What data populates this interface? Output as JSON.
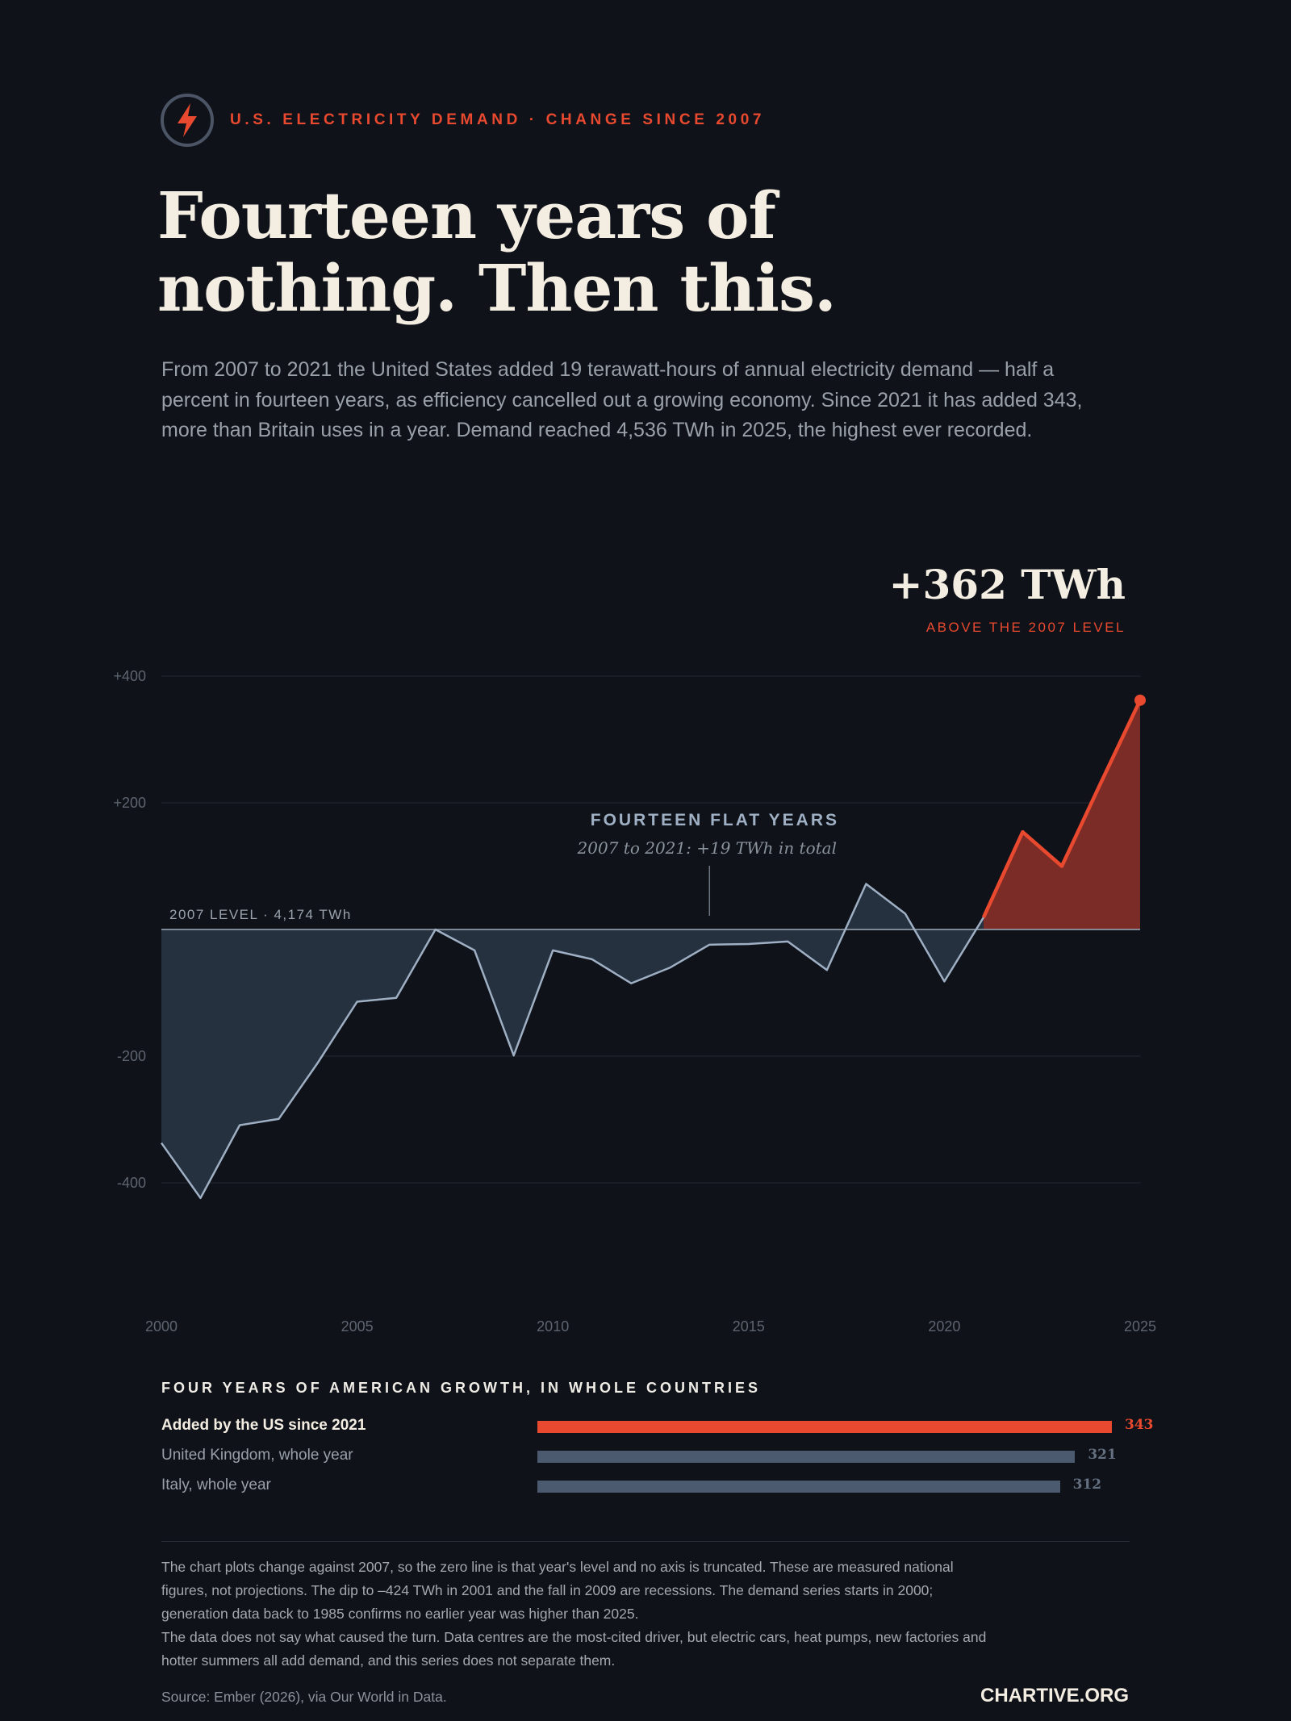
{
  "header": {
    "kicker": "U.S. ELECTRICITY DEMAND · CHANGE SINCE 2007",
    "icon": "lightning-bolt-icon",
    "title_line1": "Fourteen years of",
    "title_line2": "nothing. Then this.",
    "intro": "From 2007 to 2021 the United States added 19 terawatt-hours of annual electricity demand — half a percent in fourteen years, as efficiency cancelled out a growing economy. Since 2021 it has added 343, more than Britain uses in a year. Demand reached 4,536 TWh in 2025, the highest ever recorded."
  },
  "colors": {
    "background": "#0f1219",
    "accent": "#e8492f",
    "flat_line": "#9fb0c4",
    "flat_fill": "#263140",
    "surge_fill": "#7c2c26",
    "text": "#f3ede2"
  },
  "chart_data": {
    "type": "area",
    "title": "",
    "xlabel": "",
    "ylabel": "",
    "x": [
      2000,
      2001,
      2002,
      2003,
      2004,
      2005,
      2006,
      2007,
      2008,
      2009,
      2010,
      2011,
      2012,
      2013,
      2014,
      2015,
      2016,
      2017,
      2018,
      2019,
      2020,
      2021,
      2022,
      2023,
      2024,
      2025
    ],
    "series": [
      {
        "values": [
          -337,
          -424,
          -309,
          -299,
          -210,
          -114,
          -108,
          0,
          -33,
          -199,
          -33,
          -47,
          -85,
          -60,
          -24,
          -23,
          -19,
          -64,
          72,
          25,
          -82,
          19,
          154,
          100,
          232,
          362
        ]
      }
    ],
    "xticks": [
      "2000",
      "2005",
      "2010",
      "2015",
      "2020",
      "2025"
    ],
    "xtick_values": [
      2000,
      2005,
      2010,
      2015,
      2020,
      2025
    ],
    "yticks": [
      "+400",
      "+200",
      "-200",
      "-400"
    ],
    "ytick_values": [
      400,
      200,
      -200,
      -400
    ],
    "ylim": [
      -450,
      420
    ],
    "xlim": [
      2000,
      2025
    ],
    "grid": true,
    "baseline_label": "2007 LEVEL · 4,174 TWh",
    "highlight_start": 2021,
    "callout_value": "+362 TWh",
    "callout_label": "ABOVE THE 2007 LEVEL",
    "annotation_title": "FOURTEEN FLAT YEARS",
    "annotation_subtitle": "2007 to 2021: +19 TWh in total",
    "annotation_x": 2014
  },
  "comparison": {
    "title": "FOUR YEARS OF AMERICAN GROWTH, IN WHOLE COUNTRIES",
    "max_value": 343,
    "rows": [
      {
        "label": "Added by the US since 2021",
        "value": 343,
        "display": "343",
        "highlight": true
      },
      {
        "label": "United Kingdom, whole year",
        "value": 321,
        "display": "321",
        "highlight": false
      },
      {
        "label": "Italy, whole year",
        "value": 312,
        "display": "312",
        "highlight": false
      }
    ]
  },
  "footer": {
    "note1": "The chart plots change against 2007, so the zero line is that year's level and no axis is truncated. These are measured national figures, not projections. The dip to –424 TWh in 2001 and the fall in 2009 are recessions. The demand series starts in 2000; generation data back to 1985 confirms no earlier year was higher than 2025.",
    "note2": "The data does not say what caused the turn. Data centres are the most-cited driver, but electric cars, heat pumps, new factories and hotter summers all add demand, and this series does not separate them.",
    "source": "Source: Ember (2026), via Our World in Data.",
    "brand": "CHARTIVE.ORG"
  }
}
